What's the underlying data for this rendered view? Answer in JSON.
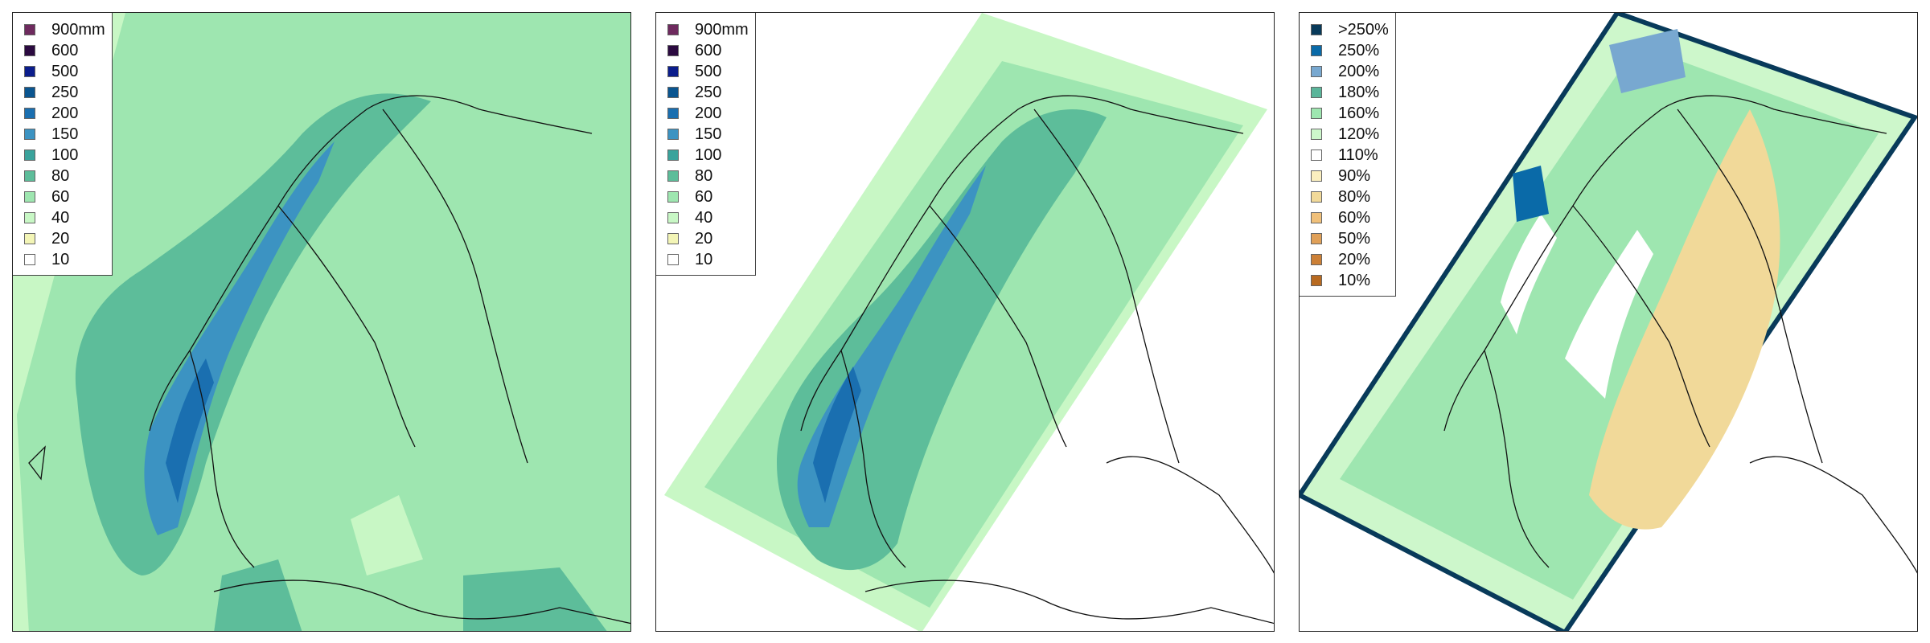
{
  "panels": [
    {
      "legend": [
        {
          "label": "900mm",
          "color": "#6e2a5e"
        },
        {
          "label": "600",
          "color": "#2b0a40"
        },
        {
          "label": "500",
          "color": "#0b1d8c"
        },
        {
          "label": "250",
          "color": "#0a5590"
        },
        {
          "label": "200",
          "color": "#1a6fb0"
        },
        {
          "label": "150",
          "color": "#3c93c2"
        },
        {
          "label": "100",
          "color": "#3aa39c"
        },
        {
          "label": "80",
          "color": "#5dbd9a"
        },
        {
          "label": "60",
          "color": "#9ee6b0"
        },
        {
          "label": "40",
          "color": "#c8f7c5"
        },
        {
          "label": "20",
          "color": "#f3f5b6"
        },
        {
          "label": "10",
          "color": "#ffffff"
        }
      ]
    },
    {
      "legend": [
        {
          "label": "900mm",
          "color": "#6e2a5e"
        },
        {
          "label": "600",
          "color": "#2b0a40"
        },
        {
          "label": "500",
          "color": "#0b1d8c"
        },
        {
          "label": "250",
          "color": "#0a5590"
        },
        {
          "label": "200",
          "color": "#1a6fb0"
        },
        {
          "label": "150",
          "color": "#3c93c2"
        },
        {
          "label": "100",
          "color": "#3aa39c"
        },
        {
          "label": "80",
          "color": "#5dbd9a"
        },
        {
          "label": "60",
          "color": "#9ee6b0"
        },
        {
          "label": "40",
          "color": "#c8f7c5"
        },
        {
          "label": "20",
          "color": "#f3f5b6"
        },
        {
          "label": "10",
          "color": "#ffffff"
        }
      ]
    },
    {
      "legend": [
        {
          "label": ">250%",
          "color": "#083a5a"
        },
        {
          "label": "250%",
          "color": "#0a6aa8"
        },
        {
          "label": "200%",
          "color": "#78a8d0"
        },
        {
          "label": "180%",
          "color": "#5ab59a"
        },
        {
          "label": "160%",
          "color": "#9ee6b0"
        },
        {
          "label": "120%",
          "color": "#cdf7cb"
        },
        {
          "label": "110%",
          "color": "#ffffff"
        },
        {
          "label": "90%",
          "color": "#fbefbf"
        },
        {
          "label": "80%",
          "color": "#f1d999"
        },
        {
          "label": "60%",
          "color": "#f0c07a"
        },
        {
          "label": "50%",
          "color": "#e0a058"
        },
        {
          "label": "20%",
          "color": "#cc8036"
        },
        {
          "label": "10%",
          "color": "#b86a20"
        }
      ]
    }
  ]
}
